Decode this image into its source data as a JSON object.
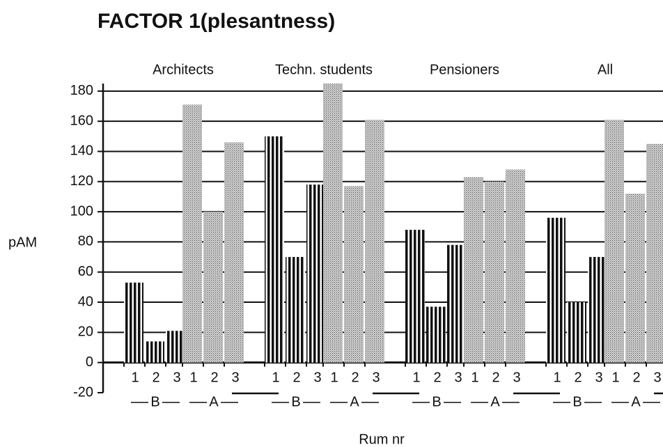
{
  "chart_data": {
    "type": "grouped-bar",
    "title": "FACTOR   1(plesantness)",
    "ylabel": "pAM",
    "xlabel": "Rum nr",
    "categories": [
      "1",
      "2",
      "3"
    ],
    "groups": [
      {
        "name": "Architects",
        "subgroups": [
          {
            "name": "B",
            "values": [
              53,
              14,
              21
            ]
          },
          {
            "name": "A",
            "values": [
              171,
              100,
              146
            ]
          }
        ]
      },
      {
        "name": "Techn. students",
        "subgroups": [
          {
            "name": "B",
            "values": [
              150,
              70,
              118
            ]
          },
          {
            "name": "A",
            "values": [
              185,
              117,
              161
            ]
          }
        ]
      },
      {
        "name": "Pensioners",
        "subgroups": [
          {
            "name": "B",
            "values": [
              88,
              37,
              78
            ]
          },
          {
            "name": "A",
            "values": [
              123,
              120,
              128
            ]
          }
        ]
      },
      {
        "name": "All",
        "subgroups": [
          {
            "name": "B",
            "values": [
              96,
              40,
              70
            ]
          },
          {
            "name": "A",
            "values": [
              161,
              112,
              145
            ]
          }
        ]
      }
    ],
    "ylim": [
      -20,
      185
    ],
    "yticks": [
      -20,
      0,
      20,
      40,
      60,
      80,
      100,
      120,
      140,
      160,
      180
    ],
    "grid": true
  }
}
